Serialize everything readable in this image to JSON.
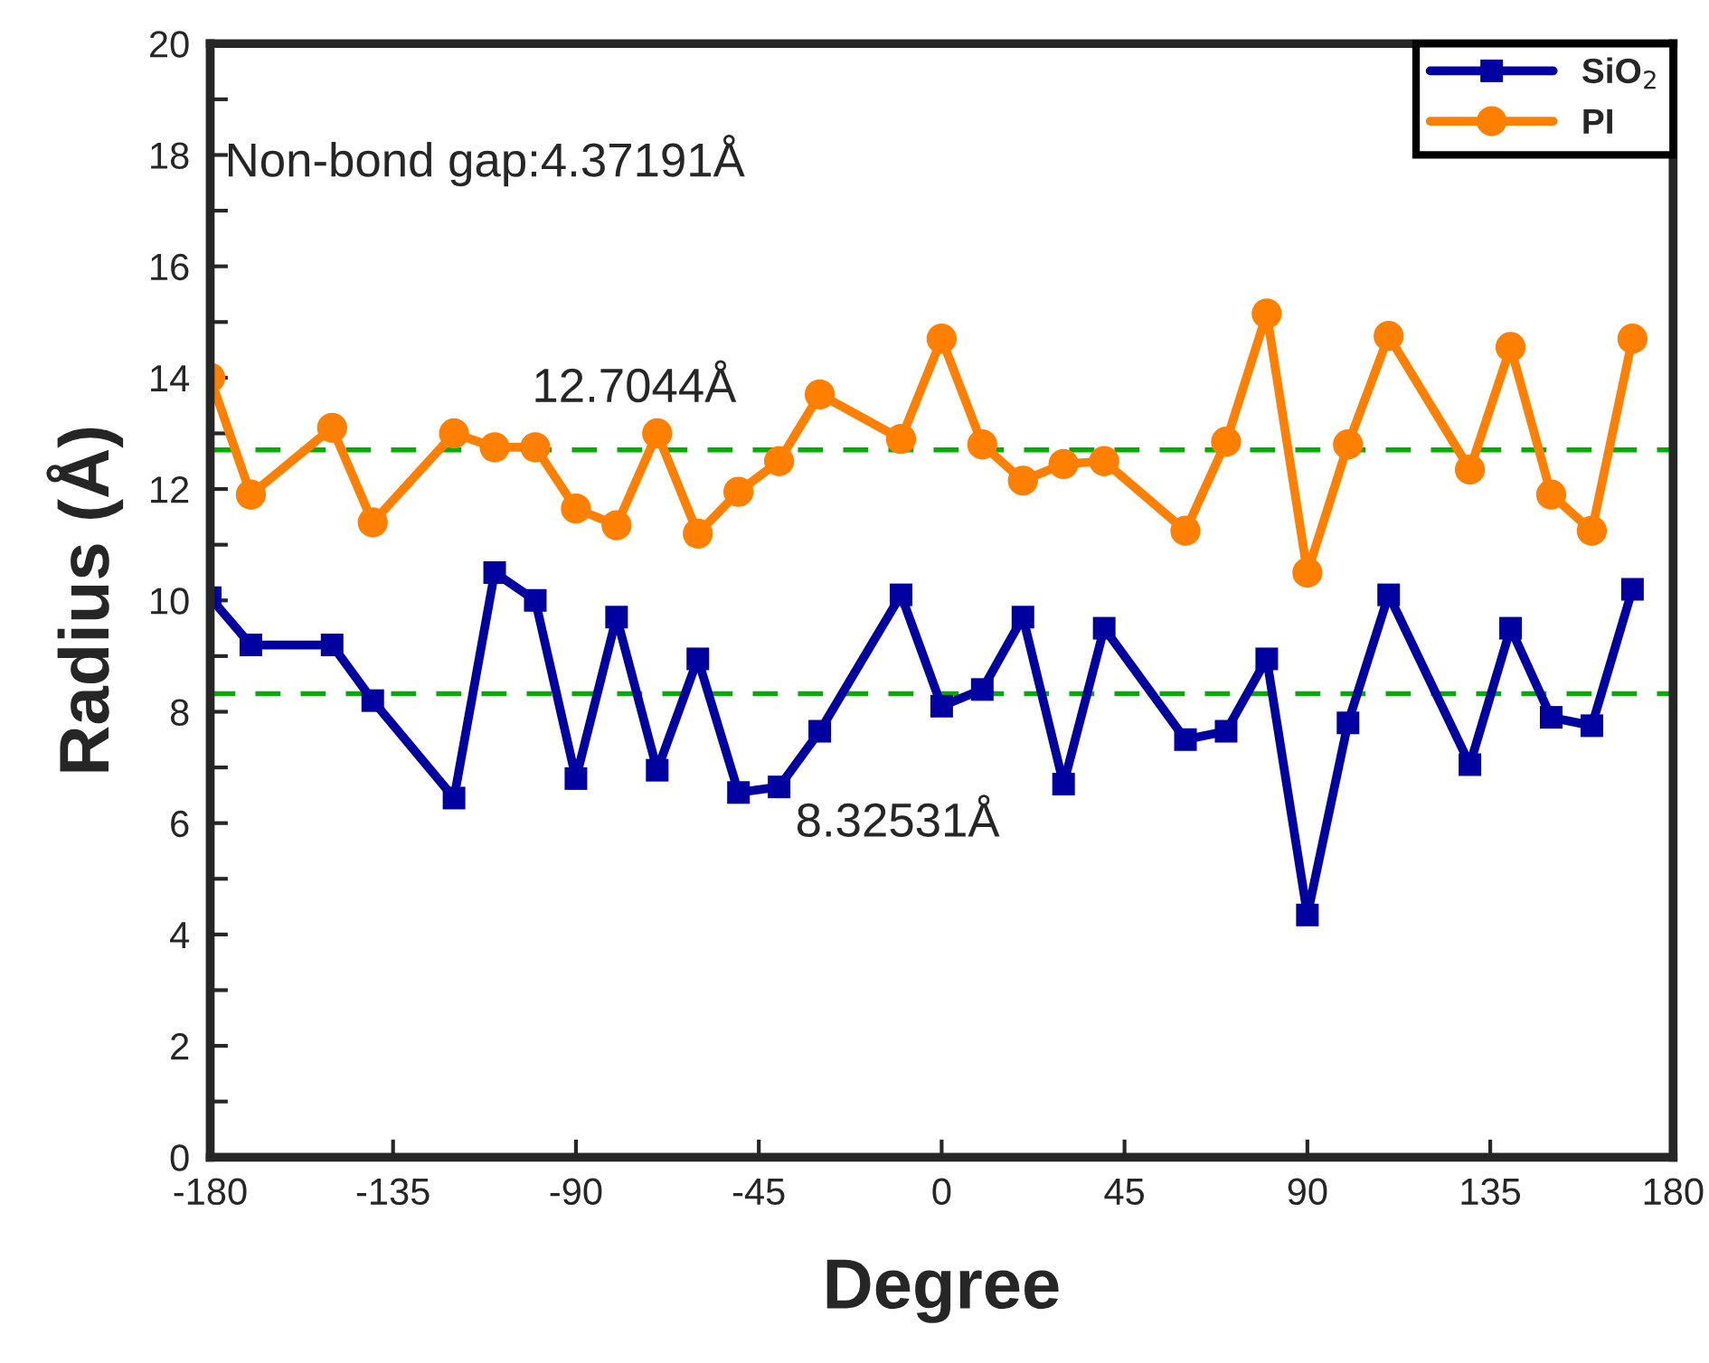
{
  "chart_data": {
    "type": "line",
    "xlabel": "Degree",
    "ylabel": "Radius (Å)",
    "x": [
      -180,
      -170,
      -150,
      -140,
      -120,
      -110,
      -100,
      -90,
      -80,
      -70,
      -60,
      -50,
      -40,
      -30,
      -10,
      0,
      10,
      20,
      30,
      40,
      60,
      70,
      80,
      90,
      100,
      110,
      130,
      140,
      150,
      160,
      170
    ],
    "series": [
      {
        "name": "SiO$_{2}$",
        "color": "#0000a0",
        "marker": "square",
        "values": [
          10.05,
          9.2,
          9.2,
          8.2,
          6.45,
          10.5,
          10.0,
          6.8,
          9.7,
          6.95,
          8.95,
          6.55,
          6.65,
          7.65,
          10.1,
          8.1,
          8.4,
          9.7,
          6.7,
          9.5,
          7.5,
          7.65,
          8.95,
          4.35,
          7.8,
          10.1,
          7.05,
          9.5,
          7.9,
          7.75,
          10.2
        ]
      },
      {
        "name": "PI",
        "color": "#ff8000",
        "marker": "circle",
        "values": [
          14.0,
          11.9,
          13.1,
          11.4,
          13.0,
          12.75,
          12.75,
          11.65,
          11.35,
          13.0,
          11.2,
          11.95,
          12.5,
          13.7,
          12.9,
          14.7,
          12.8,
          12.15,
          12.45,
          12.5,
          11.25,
          12.85,
          15.15,
          10.5,
          12.8,
          14.75,
          12.35,
          14.55,
          11.9,
          11.25,
          14.7
        ]
      }
    ],
    "xlim": [
      -180,
      180
    ],
    "xticks": [
      -180,
      -135,
      -90,
      -45,
      0,
      45,
      90,
      135,
      180
    ],
    "ylim": [
      0,
      20
    ],
    "yticks": [
      0,
      {
        "value": 1,
        "label": null
      },
      2,
      {
        "value": 3,
        "label": null
      },
      4,
      {
        "value": 5,
        "label": null
      },
      6,
      {
        "value": 7,
        "label": null
      },
      8,
      {
        "value": 9,
        "label": null
      },
      10,
      {
        "value": 11,
        "label": null
      },
      12,
      {
        "value": 13,
        "label": null
      },
      14,
      {
        "value": 15,
        "label": null
      },
      16,
      {
        "value": 17,
        "label": null
      },
      18,
      {
        "value": 19,
        "label": null
      },
      20
    ],
    "ref_lines": [
      {
        "axis": "y",
        "value": 12.7044,
        "label": "12.7044Å",
        "color": "#00b000",
        "line_style": "dashed"
      },
      {
        "axis": "y",
        "value": 8.32531,
        "label": "8.32531Å",
        "color": "#00b000",
        "line_style": "dashed"
      }
    ],
    "annotations": [
      "Non-bond gap:4.37191Å"
    ],
    "legend": "top right",
    "grid": false,
    "line_style": "solid"
  }
}
